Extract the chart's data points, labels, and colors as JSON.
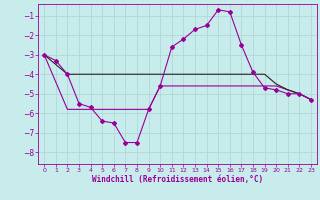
{
  "xlabel": "Windchill (Refroidissement éolien,°C)",
  "background_color": "#c8ecec",
  "grid_color": "#b0d8d8",
  "line_color": "#990099",
  "flat_line_color": "#222222",
  "xlim": [
    -0.5,
    23.5
  ],
  "ylim": [
    -8.6,
    -0.4
  ],
  "yticks": [
    -8,
    -7,
    -6,
    -5,
    -4,
    -3,
    -2,
    -1
  ],
  "xticks": [
    0,
    1,
    2,
    3,
    4,
    5,
    6,
    7,
    8,
    9,
    10,
    11,
    12,
    13,
    14,
    15,
    16,
    17,
    18,
    19,
    20,
    21,
    22,
    23
  ],
  "line1_x": [
    0,
    1,
    2,
    3,
    4,
    5,
    6,
    7,
    8,
    9,
    10,
    11,
    12,
    13,
    14,
    15,
    16,
    17,
    18,
    19,
    20,
    21,
    22,
    23
  ],
  "line1_y": [
    -3.0,
    -3.3,
    -4.0,
    -5.5,
    -5.7,
    -6.4,
    -6.5,
    -7.5,
    -7.5,
    -5.8,
    -4.6,
    -2.6,
    -2.2,
    -1.7,
    -1.5,
    -0.7,
    -0.8,
    -2.5,
    -3.9,
    -4.7,
    -4.8,
    -5.0,
    -5.0,
    -5.3
  ],
  "line2_x": [
    0,
    1,
    2,
    3,
    4,
    5,
    6,
    7,
    8,
    9,
    10,
    11,
    12,
    13,
    14,
    15,
    16,
    17,
    18,
    19,
    20,
    21,
    22,
    23
  ],
  "line2_y": [
    -3.0,
    -3.5,
    -4.0,
    -4.0,
    -4.0,
    -4.0,
    -4.0,
    -4.0,
    -4.0,
    -4.0,
    -4.0,
    -4.0,
    -4.0,
    -4.0,
    -4.0,
    -4.0,
    -4.0,
    -4.0,
    -4.0,
    -4.0,
    -4.5,
    -4.8,
    -5.0,
    -5.3
  ],
  "line3_x": [
    0,
    2,
    3,
    5,
    6,
    7,
    8,
    9,
    10,
    11,
    12,
    13,
    14,
    15,
    16,
    17,
    18,
    19,
    20,
    21,
    22,
    23
  ],
  "line3_y": [
    -3.0,
    -5.8,
    -5.8,
    -5.8,
    -5.8,
    -5.8,
    -5.8,
    -5.8,
    -4.6,
    -4.6,
    -4.6,
    -4.6,
    -4.6,
    -4.6,
    -4.6,
    -4.6,
    -4.6,
    -4.6,
    -4.6,
    -4.8,
    -5.0,
    -5.3
  ]
}
